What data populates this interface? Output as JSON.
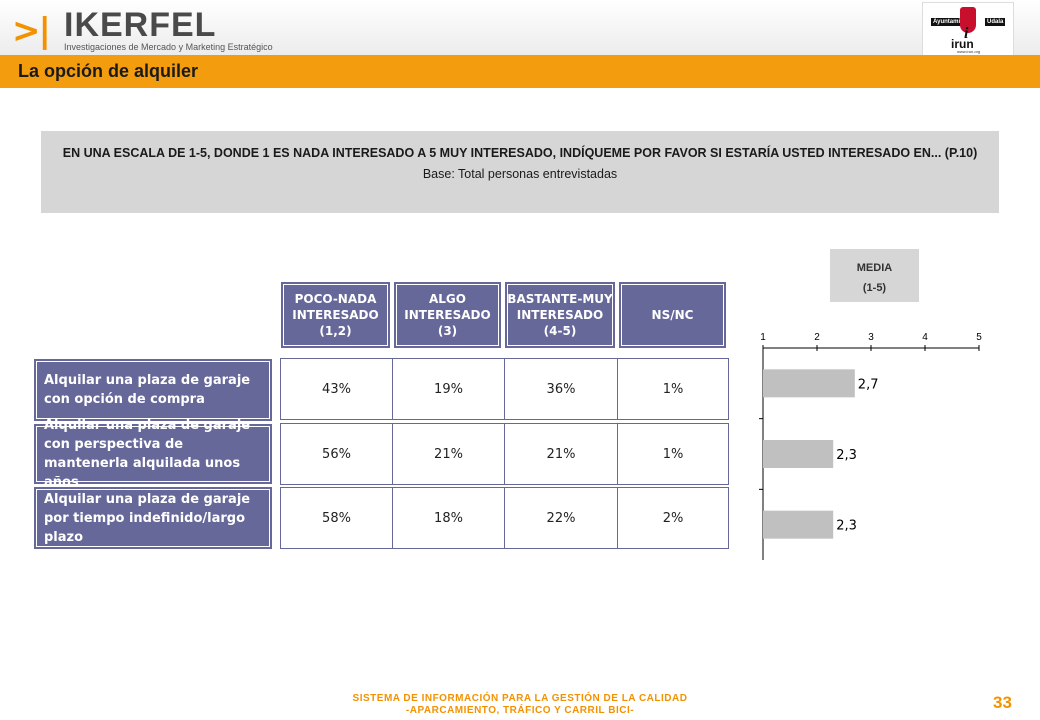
{
  "header": {
    "logo_mark": ">|",
    "logo_name": "IKERFEL",
    "logo_tagline": "Investigaciones de Mercado y Marketing Estratégico",
    "client_left": "Ayuntamiento",
    "client_right": "Udala",
    "client_name": "irun",
    "client_url": "www.irun.org"
  },
  "title": "La opción de alquiler",
  "question": {
    "text": "EN UNA ESCALA DE 1-5, DONDE 1 ES NADA INTERESADO A 5 MUY INTERESADO, INDÍQUEME POR FAVOR SI ESTARÍA USTED INTERESADO EN... (P.10)",
    "base": "Base: Total personas entrevistadas"
  },
  "table": {
    "columns": [
      {
        "label": "POCO-NADA\nINTERESADO\n(1,2)"
      },
      {
        "label": "ALGO\nINTERESADO\n(3)"
      },
      {
        "label": "BASTANTE-MUY\nINTERESADO\n(4-5)"
      },
      {
        "label": "NS/NC"
      }
    ],
    "rows": [
      {
        "label": "Alquilar una plaza de garaje con opción de compra",
        "values": [
          "43%",
          "19%",
          "36%",
          "1%"
        ]
      },
      {
        "label": "Alquilar una plaza de garaje con perspectiva de mantenerla alquilada unos años",
        "values": [
          "56%",
          "21%",
          "21%",
          "1%"
        ]
      },
      {
        "label": "Alquilar una plaza de garaje por tiempo indefinido/largo plazo",
        "values": [
          "58%",
          "18%",
          "22%",
          "2%"
        ]
      }
    ]
  },
  "media": {
    "label": "MEDIA",
    "scale": "(1-5)"
  },
  "chart_data": {
    "type": "bar",
    "orientation": "horizontal",
    "categories": [
      "Alquilar una plaza de garaje con opción de compra",
      "Alquilar una plaza de garaje con perspectiva de mantenerla alquilada unos años",
      "Alquilar una plaza de garaje por tiempo indefinido/largo plazo"
    ],
    "values": [
      2.7,
      2.3,
      2.3
    ],
    "data_labels": [
      "2,7",
      "2,3",
      "2,3"
    ],
    "xlim": [
      1,
      5
    ],
    "x_ticks": [
      "1",
      "2",
      "3",
      "4",
      "5"
    ],
    "title": "",
    "xlabel": "",
    "ylabel": "",
    "bar_color": "#c0c0c0",
    "grid": false,
    "legend": "none"
  },
  "footer": {
    "line1": "SISTEMA DE INFORMACIÓN PARA LA GESTIÓN DE LA CALIDAD",
    "line2": "-APARCAMIENTO, TRÁFICO Y CARRIL BICI-",
    "page_number": "33"
  },
  "colors": {
    "accent": "#f39c0e",
    "table_header": "#67689a",
    "panel": "#d6d6d6"
  }
}
